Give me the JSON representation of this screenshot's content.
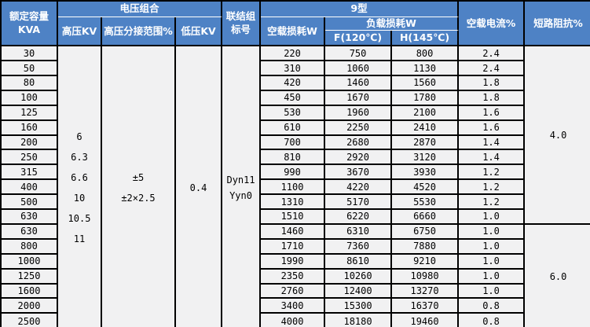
{
  "colors": {
    "header_bg": "#4e82c5",
    "header_text": "#ffffff",
    "body_bg": "#f1f1f2",
    "grid": "#000000"
  },
  "table": {
    "headers": {
      "rated_capacity": "额定容量\nKVA",
      "voltage_combo": "电压组合",
      "hv": "高压KV",
      "tap_range": "高压分接范围%",
      "lv": "低压KV",
      "vector_group": "联结组标号",
      "type9": "9型",
      "no_load_loss": "空载损耗W",
      "load_loss": "负载损耗W",
      "f120": "F(120℃)",
      "h145": "H(145℃)",
      "no_load_current": "空载电流%",
      "impedance": "短路阻抗%"
    },
    "merged_cells": {
      "hv_values": "6\n6.3\n6.6\n10\n10.5\n11",
      "tap_values": "±5\n±2×2.5",
      "lv_value": "0.4",
      "vector_values": "Dyn11\nYyn0"
    },
    "impedance_groups": [
      {
        "value": "4.0",
        "rows": 12
      },
      {
        "value": "6.0",
        "rows": 7
      }
    ],
    "rows": [
      [
        "30",
        "220",
        "750",
        "800",
        "2.4"
      ],
      [
        "50",
        "310",
        "1060",
        "1130",
        "2.4"
      ],
      [
        "80",
        "420",
        "1460",
        "1560",
        "1.8"
      ],
      [
        "100",
        "450",
        "1670",
        "1780",
        "1.8"
      ],
      [
        "125",
        "530",
        "1960",
        "2100",
        "1.6"
      ],
      [
        "160",
        "610",
        "2250",
        "2410",
        "1.6"
      ],
      [
        "200",
        "700",
        "2680",
        "2870",
        "1.4"
      ],
      [
        "250",
        "810",
        "2920",
        "3120",
        "1.4"
      ],
      [
        "315",
        "990",
        "3670",
        "3930",
        "1.2"
      ],
      [
        "400",
        "1100",
        "4220",
        "4520",
        "1.2"
      ],
      [
        "500",
        "1310",
        "5170",
        "5530",
        "1.2"
      ],
      [
        "630",
        "1510",
        "6220",
        "6660",
        "1.0"
      ],
      [
        "630",
        "1460",
        "6310",
        "6750",
        "1.0"
      ],
      [
        "800",
        "1710",
        "7360",
        "7880",
        "1.0"
      ],
      [
        "1000",
        "1990",
        "8610",
        "9210",
        "1.0"
      ],
      [
        "1250",
        "2350",
        "10260",
        "10980",
        "1.0"
      ],
      [
        "1600",
        "2760",
        "12400",
        "13270",
        "1.0"
      ],
      [
        "2000",
        "3400",
        "15300",
        "16370",
        "0.8"
      ],
      [
        "2500",
        "4000",
        "18180",
        "19460",
        "0.8"
      ]
    ]
  }
}
